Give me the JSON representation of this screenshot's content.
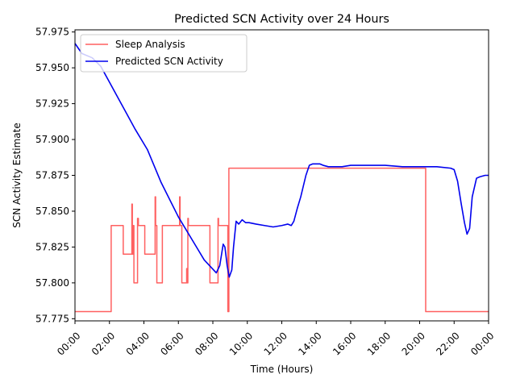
{
  "chart_data": {
    "type": "line",
    "title": "Predicted SCN Activity over 24 Hours",
    "xlabel": "Time (Hours)",
    "ylabel": "SCN Activity Estimate",
    "xlim": [
      0,
      24
    ],
    "ylim": [
      57.7735,
      57.9765
    ],
    "x_unit": "hours",
    "grid": false,
    "legend_position": "top-left",
    "x_ticks": [
      {
        "value": 0,
        "label": "00:00"
      },
      {
        "value": 2,
        "label": "02:00"
      },
      {
        "value": 4,
        "label": "04:00"
      },
      {
        "value": 6,
        "label": "06:00"
      },
      {
        "value": 8,
        "label": "08:00"
      },
      {
        "value": 10,
        "label": "10:00"
      },
      {
        "value": 12,
        "label": "12:00"
      },
      {
        "value": 14,
        "label": "14:00"
      },
      {
        "value": 16,
        "label": "16:00"
      },
      {
        "value": 18,
        "label": "18:00"
      },
      {
        "value": 20,
        "label": "20:00"
      },
      {
        "value": 22,
        "label": "22:00"
      },
      {
        "value": 24,
        "label": "00:00"
      }
    ],
    "y_ticks": [
      {
        "value": 57.775,
        "label": "57.775"
      },
      {
        "value": 57.8,
        "label": "57.800"
      },
      {
        "value": 57.825,
        "label": "57.825"
      },
      {
        "value": 57.85,
        "label": "57.850"
      },
      {
        "value": 57.875,
        "label": "57.875"
      },
      {
        "value": 57.9,
        "label": "57.900"
      },
      {
        "value": 57.925,
        "label": "57.925"
      },
      {
        "value": 57.95,
        "label": "57.950"
      },
      {
        "value": 57.975,
        "label": "57.975"
      }
    ],
    "series": [
      {
        "name": "Sleep Analysis",
        "color": "#ff4444",
        "style": "step",
        "points": [
          [
            0,
            57.78
          ],
          [
            2.1,
            57.78
          ],
          [
            2.1,
            57.84
          ],
          [
            2.8,
            57.84
          ],
          [
            2.8,
            57.82
          ],
          [
            3.3,
            57.82
          ],
          [
            3.3,
            57.855
          ],
          [
            3.33,
            57.855
          ],
          [
            3.33,
            57.82
          ],
          [
            3.38,
            57.82
          ],
          [
            3.38,
            57.84
          ],
          [
            3.42,
            57.84
          ],
          [
            3.42,
            57.8
          ],
          [
            3.63,
            57.8
          ],
          [
            3.63,
            57.845
          ],
          [
            3.68,
            57.845
          ],
          [
            3.68,
            57.84
          ],
          [
            4.05,
            57.84
          ],
          [
            4.05,
            57.82
          ],
          [
            4.65,
            57.82
          ],
          [
            4.65,
            57.86
          ],
          [
            4.68,
            57.86
          ],
          [
            4.68,
            57.84
          ],
          [
            4.75,
            57.84
          ],
          [
            4.75,
            57.8
          ],
          [
            5.07,
            57.8
          ],
          [
            5.07,
            57.84
          ],
          [
            6.07,
            57.84
          ],
          [
            6.07,
            57.86
          ],
          [
            6.1,
            57.86
          ],
          [
            6.1,
            57.84
          ],
          [
            6.2,
            57.84
          ],
          [
            6.2,
            57.8
          ],
          [
            6.48,
            57.8
          ],
          [
            6.48,
            57.81
          ],
          [
            6.51,
            57.81
          ],
          [
            6.51,
            57.8
          ],
          [
            6.55,
            57.8
          ],
          [
            6.55,
            57.845
          ],
          [
            6.58,
            57.845
          ],
          [
            6.58,
            57.84
          ],
          [
            7.83,
            57.84
          ],
          [
            7.83,
            57.8
          ],
          [
            8.3,
            57.8
          ],
          [
            8.3,
            57.845
          ],
          [
            8.33,
            57.845
          ],
          [
            8.33,
            57.84
          ],
          [
            8.87,
            57.84
          ],
          [
            8.87,
            57.78
          ],
          [
            8.93,
            57.78
          ],
          [
            8.93,
            57.88
          ],
          [
            20.35,
            57.88
          ],
          [
            20.35,
            57.78
          ],
          [
            24,
            57.78
          ]
        ]
      },
      {
        "name": "Predicted SCN Activity",
        "color": "#0000ee",
        "style": "line",
        "points": [
          [
            0,
            57.967
          ],
          [
            0.4,
            57.96
          ],
          [
            1.0,
            57.957
          ],
          [
            1.5,
            57.951
          ],
          [
            2,
            57.94
          ],
          [
            3,
            57.918
          ],
          [
            3.5,
            57.907
          ],
          [
            4.2,
            57.893
          ],
          [
            5,
            57.87
          ],
          [
            6,
            57.846
          ],
          [
            7,
            57.826
          ],
          [
            7.5,
            57.816
          ],
          [
            8.2,
            57.807
          ],
          [
            8.4,
            57.812
          ],
          [
            8.6,
            57.827
          ],
          [
            8.7,
            57.825
          ],
          [
            8.83,
            57.812
          ],
          [
            8.95,
            57.804
          ],
          [
            9.1,
            57.809
          ],
          [
            9.2,
            57.825
          ],
          [
            9.35,
            57.843
          ],
          [
            9.5,
            57.841
          ],
          [
            9.7,
            57.844
          ],
          [
            9.9,
            57.842
          ],
          [
            10.1,
            57.842
          ],
          [
            10.5,
            57.841
          ],
          [
            11.0,
            57.84
          ],
          [
            11.5,
            57.839
          ],
          [
            12.0,
            57.84
          ],
          [
            12.35,
            57.841
          ],
          [
            12.55,
            57.84
          ],
          [
            12.7,
            57.843
          ],
          [
            12.9,
            57.852
          ],
          [
            13.1,
            57.86
          ],
          [
            13.4,
            57.875
          ],
          [
            13.6,
            57.882
          ],
          [
            13.8,
            57.883
          ],
          [
            14.0,
            57.883
          ],
          [
            14.2,
            57.883
          ],
          [
            14.4,
            57.882
          ],
          [
            14.7,
            57.881
          ],
          [
            15.0,
            57.881
          ],
          [
            15.5,
            57.881
          ],
          [
            16.0,
            57.882
          ],
          [
            16.5,
            57.882
          ],
          [
            17.0,
            57.882
          ],
          [
            18.0,
            57.882
          ],
          [
            19.0,
            57.881
          ],
          [
            20.0,
            57.881
          ],
          [
            21.0,
            57.881
          ],
          [
            21.8,
            57.88
          ],
          [
            22.0,
            57.879
          ],
          [
            22.2,
            57.871
          ],
          [
            22.4,
            57.856
          ],
          [
            22.6,
            57.842
          ],
          [
            22.75,
            57.834
          ],
          [
            22.9,
            57.838
          ],
          [
            23.05,
            57.86
          ],
          [
            23.3,
            57.873
          ],
          [
            23.5,
            57.874
          ],
          [
            23.8,
            57.875
          ],
          [
            24.0,
            57.875
          ]
        ]
      }
    ]
  }
}
